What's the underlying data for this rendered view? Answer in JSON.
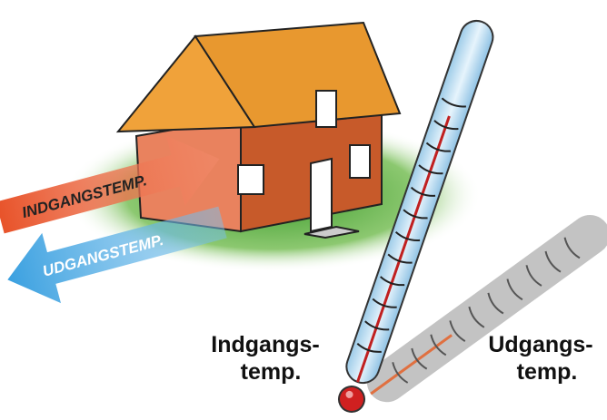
{
  "arrows": {
    "inlet": "INDGANGSTEMP.",
    "outlet": "UDGANGSTEMP."
  },
  "labels": {
    "inlet": [
      "Indgangs-",
      "temp."
    ],
    "outlet": [
      "Udgangs-",
      "temp."
    ]
  }
}
